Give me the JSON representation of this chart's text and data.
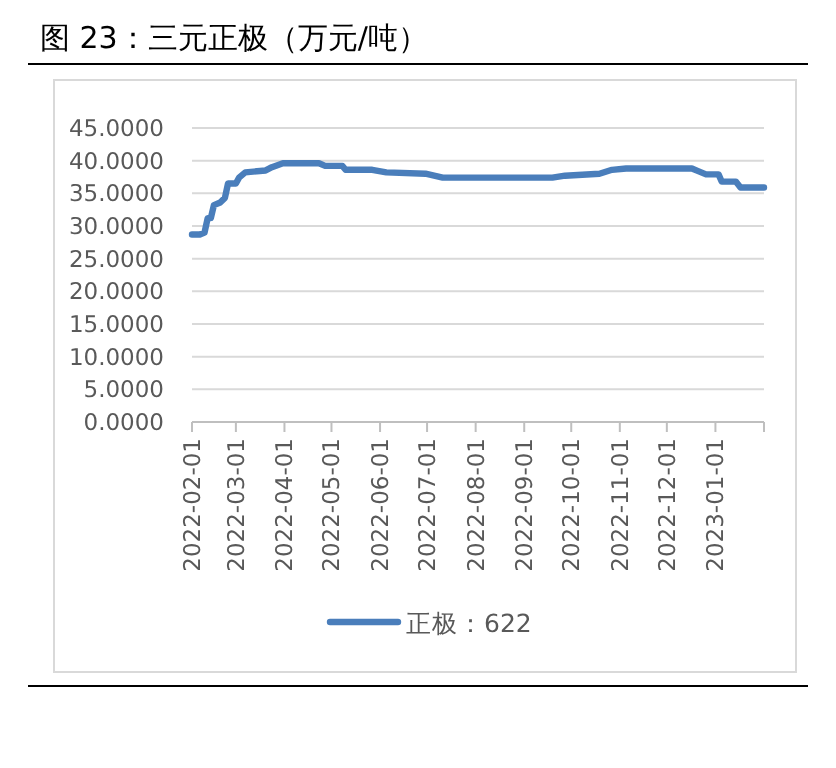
{
  "chart_data": {
    "type": "line",
    "title": "图 23：三元正极（万元/吨）",
    "x": [
      "2022-02-01",
      "2022-02-06",
      "2022-02-09",
      "2022-02-11",
      "2022-02-13",
      "2022-02-15",
      "2022-02-19",
      "2022-02-22",
      "2022-02-24",
      "2022-03-01",
      "2022-03-03",
      "2022-03-07",
      "2022-03-20",
      "2022-03-24",
      "2022-03-31",
      "2022-04-23",
      "2022-04-27",
      "2022-05-08",
      "2022-05-10",
      "2022-05-27",
      "2022-06-05",
      "2022-06-30",
      "2022-07-11",
      "2022-09-19",
      "2022-09-27",
      "2022-10-19",
      "2022-10-27",
      "2022-11-05",
      "2022-12-17",
      "2022-12-21",
      "2022-12-26",
      "2023-01-03",
      "2023-01-05",
      "2023-01-14",
      "2023-01-17",
      "2023-02-01"
    ],
    "series": [
      {
        "name": "正极：622",
        "color": "#4a7ebb",
        "values": [
          28.7,
          28.7,
          29,
          31.2,
          31.2,
          33.2,
          33.6,
          34.3,
          36.5,
          36.5,
          37.4,
          38.2,
          38.5,
          39,
          39.6,
          39.6,
          39.2,
          39.2,
          38.6,
          38.6,
          38.2,
          38,
          37.4,
          37.4,
          37.7,
          38,
          38.6,
          38.8,
          38.8,
          38.4,
          37.9,
          37.9,
          36.8,
          36.8,
          35.9,
          35.9
        ]
      }
    ],
    "xlim": [
      "2022-02-01",
      "2023-02-01"
    ],
    "xticks": [
      "2022-02-01",
      "2022-03-01",
      "2022-04-01",
      "2022-05-01",
      "2022-06-01",
      "2022-07-01",
      "2022-08-01",
      "2022-09-01",
      "2022-10-01",
      "2022-11-01",
      "2022-12-01",
      "2023-01-01"
    ],
    "ylim": [
      0,
      45
    ],
    "yticks": [
      {
        "value": 0,
        "label": "0.0000"
      },
      {
        "value": 5,
        "label": "5.0000"
      },
      {
        "value": 10,
        "label": "10.0000"
      },
      {
        "value": 15,
        "label": "15.0000"
      },
      {
        "value": 20,
        "label": "20.0000"
      },
      {
        "value": 25,
        "label": "25.0000"
      },
      {
        "value": 30,
        "label": "30.0000"
      },
      {
        "value": 35,
        "label": "35.0000"
      },
      {
        "value": 40,
        "label": "40.0000"
      },
      {
        "value": 45,
        "label": "45.0000"
      }
    ],
    "grid": "y",
    "legend": "bottom",
    "marker": "none",
    "line_style": "solid"
  }
}
